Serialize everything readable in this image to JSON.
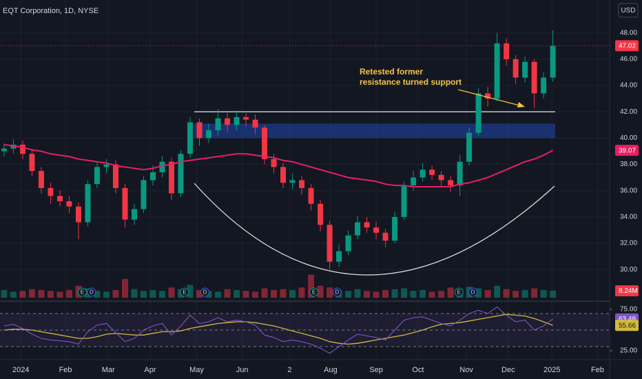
{
  "chart_data": {
    "type": "candlestick",
    "title": "EQT Corporation, 1D, NYSE",
    "currency": "USD",
    "candles": [
      [
        39.0,
        39.6,
        38.6,
        39.2
      ],
      [
        39.2,
        39.9,
        38.8,
        39.5
      ],
      [
        39.5,
        39.8,
        38.4,
        38.8
      ],
      [
        38.8,
        39.1,
        37.1,
        37.5
      ],
      [
        37.5,
        37.8,
        35.8,
        36.2
      ],
      [
        36.2,
        36.6,
        35.0,
        35.6
      ],
      [
        35.6,
        36.0,
        34.8,
        35.2
      ],
      [
        35.2,
        35.6,
        34.3,
        34.8
      ],
      [
        34.8,
        35.1,
        32.3,
        33.6
      ],
      [
        33.6,
        36.8,
        33.3,
        36.5
      ],
      [
        36.5,
        38.2,
        36.2,
        37.8
      ],
      [
        37.8,
        38.4,
        37.3,
        38.0
      ],
      [
        38.0,
        38.3,
        35.8,
        36.2
      ],
      [
        36.2,
        36.5,
        33.2,
        33.8
      ],
      [
        33.8,
        35.0,
        33.4,
        34.6
      ],
      [
        34.6,
        37.1,
        34.3,
        36.8
      ],
      [
        36.8,
        37.9,
        36.4,
        37.4
      ],
      [
        37.4,
        38.6,
        37.0,
        38.2
      ],
      [
        38.2,
        38.5,
        35.3,
        35.8
      ],
      [
        35.8,
        39.1,
        35.5,
        38.8
      ],
      [
        38.8,
        41.6,
        38.5,
        41.2
      ],
      [
        41.2,
        41.5,
        39.4,
        40.0
      ],
      [
        40.0,
        41.1,
        39.6,
        40.6
      ],
      [
        40.6,
        42.2,
        40.2,
        41.5
      ],
      [
        41.5,
        41.9,
        40.5,
        41.0
      ],
      [
        41.0,
        42.1,
        40.6,
        41.6
      ],
      [
        41.6,
        41.9,
        40.9,
        41.4
      ],
      [
        41.4,
        41.8,
        40.3,
        40.8
      ],
      [
        40.8,
        41.0,
        38.0,
        38.4
      ],
      [
        38.4,
        38.8,
        37.3,
        37.8
      ],
      [
        37.8,
        38.1,
        36.2,
        36.6
      ],
      [
        36.6,
        37.3,
        36.1,
        36.8
      ],
      [
        36.8,
        37.1,
        35.7,
        36.2
      ],
      [
        36.2,
        36.5,
        34.5,
        35.0
      ],
      [
        35.0,
        35.3,
        32.9,
        33.4
      ],
      [
        33.4,
        33.7,
        30.0,
        30.6
      ],
      [
        30.6,
        31.9,
        30.2,
        31.4
      ],
      [
        31.4,
        33.0,
        31.1,
        32.6
      ],
      [
        32.6,
        34.1,
        32.3,
        33.6
      ],
      [
        33.6,
        34.0,
        32.8,
        33.2
      ],
      [
        33.2,
        33.6,
        32.3,
        32.8
      ],
      [
        32.8,
        33.1,
        31.7,
        32.2
      ],
      [
        32.2,
        34.4,
        32.0,
        34.0
      ],
      [
        34.0,
        36.7,
        33.8,
        36.4
      ],
      [
        36.4,
        37.5,
        36.0,
        37.0
      ],
      [
        37.0,
        38.1,
        36.7,
        37.6
      ],
      [
        37.6,
        37.9,
        36.8,
        37.2
      ],
      [
        37.2,
        37.5,
        36.3,
        36.8
      ],
      [
        36.8,
        37.1,
        35.9,
        36.4
      ],
      [
        36.4,
        38.7,
        35.6,
        38.2
      ],
      [
        38.2,
        40.8,
        37.9,
        40.4
      ],
      [
        40.4,
        43.8,
        40.2,
        43.4
      ],
      [
        43.4,
        43.9,
        42.4,
        43.0
      ],
      [
        43.0,
        48.0,
        42.8,
        47.2
      ],
      [
        47.2,
        47.6,
        45.5,
        46.0
      ],
      [
        46.0,
        46.3,
        44.1,
        44.6
      ],
      [
        44.6,
        46.2,
        44.2,
        45.8
      ],
      [
        45.8,
        46.0,
        42.3,
        43.4
      ],
      [
        43.4,
        45.0,
        43.0,
        44.6
      ],
      [
        44.6,
        48.2,
        44.3,
        47.02
      ]
    ],
    "up_color": "#089981",
    "down_color": "#f23645",
    "ma200": {
      "color": "#e91e63",
      "values": [
        39.5,
        39.4,
        39.3,
        39.1,
        39.0,
        38.8,
        38.7,
        38.6,
        38.4,
        38.3,
        38.2,
        38.1,
        37.9,
        37.8,
        37.7,
        37.6,
        37.7,
        37.9,
        38.0,
        38.2,
        38.3,
        38.4,
        38.5,
        38.6,
        38.7,
        38.8,
        38.8,
        38.7,
        38.6,
        38.5,
        38.3,
        38.2,
        38.0,
        37.8,
        37.6,
        37.4,
        37.2,
        37.0,
        36.9,
        36.8,
        36.7,
        36.5,
        36.4,
        36.4,
        36.3,
        36.3,
        36.3,
        36.3,
        36.3,
        36.5,
        36.6,
        36.8,
        37.0,
        37.3,
        37.6,
        37.9,
        38.2,
        38.4,
        38.7,
        39.07
      ]
    },
    "volume": {
      "color_up": "rgba(8,153,129,0.5)",
      "color_down": "rgba(242,54,69,0.5)",
      "values": [
        9,
        7,
        8,
        10,
        9,
        8,
        7,
        9,
        14,
        11,
        8,
        7,
        9,
        22,
        10,
        8,
        9,
        8,
        12,
        10,
        15,
        9,
        8,
        7,
        10,
        9,
        8,
        7,
        11,
        9,
        10,
        9,
        12,
        27,
        14,
        12,
        9,
        8,
        10,
        8,
        7,
        9,
        10,
        11,
        8,
        9,
        7,
        8,
        12,
        10,
        13,
        11,
        9,
        14,
        10,
        8,
        9,
        11,
        9,
        8.24
      ],
      "value_labels": {
        "59": "8.24M"
      },
      "vlim": [
        0,
        30
      ]
    },
    "rsi": {
      "color": "#7e57c2",
      "ma_color": "#d4b93c",
      "values": [
        55,
        57,
        52,
        45,
        40,
        38,
        37,
        36,
        33,
        48,
        56,
        58,
        47,
        36,
        40,
        50,
        55,
        58,
        44,
        55,
        68,
        58,
        60,
        65,
        60,
        62,
        60,
        56,
        44,
        41,
        36,
        38,
        36,
        33,
        28,
        22,
        30,
        38,
        45,
        43,
        41,
        38,
        50,
        62,
        65,
        66,
        62,
        58,
        55,
        62,
        70,
        74,
        70,
        78,
        68,
        60,
        62,
        50,
        55,
        63.48
      ],
      "ma": [
        50,
        51,
        51,
        50,
        48,
        46,
        44,
        42,
        40,
        40,
        42,
        45,
        46,
        45,
        44,
        44,
        46,
        48,
        48,
        49,
        52,
        54,
        56,
        58,
        59,
        60,
        60,
        59,
        57,
        55,
        52,
        49,
        46,
        43,
        40,
        36,
        34,
        33,
        34,
        36,
        38,
        40,
        42,
        44,
        47,
        50,
        54,
        57,
        58,
        59,
        61,
        63,
        65,
        67,
        69,
        68,
        67,
        64,
        60,
        55.66
      ],
      "ylim": [
        15,
        85
      ],
      "yticks": [
        {
          "value": 25,
          "label": "25.00"
        },
        {
          "value": 75,
          "label": "75.00"
        }
      ],
      "band": [
        30,
        70
      ],
      "midline": 50
    },
    "xlim": [
      -0.44,
      65.1
    ],
    "xticks": [
      {
        "value": 1.8,
        "label": "2024"
      },
      {
        "value": 6.6,
        "label": "Feb"
      },
      {
        "value": 11.2,
        "label": "Mar"
      },
      {
        "value": 15.7,
        "label": "Apr"
      },
      {
        "value": 20.7,
        "label": "May"
      },
      {
        "value": 25.6,
        "label": "Jun"
      },
      {
        "value": 30.7,
        "label": "2"
      },
      {
        "value": 35.1,
        "label": "Aug"
      },
      {
        "value": 40.0,
        "label": "Sep"
      },
      {
        "value": 44.5,
        "label": "Oct"
      },
      {
        "value": 49.7,
        "label": "Nov"
      },
      {
        "value": 54.2,
        "label": "Dec"
      },
      {
        "value": 58.9,
        "label": "2025"
      },
      {
        "value": 63.8,
        "label": "Feb"
      }
    ],
    "ylim": [
      27.6,
      50.5
    ],
    "yticks": [
      {
        "value": 30,
        "label": "30.00"
      },
      {
        "value": 32,
        "label": "32.00"
      },
      {
        "value": 34,
        "label": "34.00"
      },
      {
        "value": 36,
        "label": "36.00"
      },
      {
        "value": 38,
        "label": "38.00"
      },
      {
        "value": 40,
        "label": "40.00"
      },
      {
        "value": 42,
        "label": "42.00"
      },
      {
        "value": 44,
        "label": "44.00"
      },
      {
        "value": 46,
        "label": "46.00"
      },
      {
        "value": 48,
        "label": "48.00"
      }
    ],
    "resistance_level": 42,
    "support_zone": [
      40.0,
      41.1
    ],
    "annotation": [
      "Retested former",
      "resistance turned support"
    ],
    "events": [
      {
        "x": 8.4,
        "label": "E"
      },
      {
        "x": 9.4,
        "label": "D"
      },
      {
        "x": 19.4,
        "label": "E"
      },
      {
        "x": 21.6,
        "label": "D"
      },
      {
        "x": 33.3,
        "label": "E"
      },
      {
        "x": 35.8,
        "label": "D"
      },
      {
        "x": 48.9,
        "label": "E"
      },
      {
        "x": 50.4,
        "label": "D"
      }
    ]
  }
}
